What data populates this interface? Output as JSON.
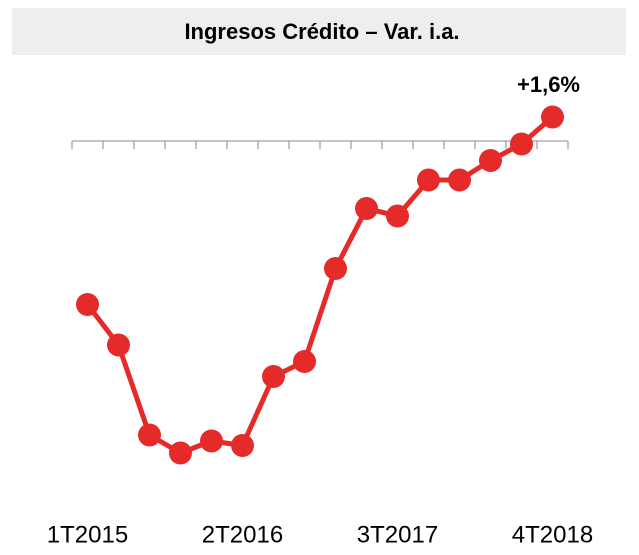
{
  "chart_data": {
    "type": "line",
    "title": "Ingresos Crédito – Var. i.a.",
    "categories": [
      "1T2015",
      null,
      null,
      null,
      null,
      "2T2016",
      null,
      null,
      null,
      null,
      "3T2017",
      null,
      null,
      null,
      null,
      "4T2018"
    ],
    "series": [
      {
        "name": null,
        "color": "#e52a2a",
        "values": [
          -10.9,
          -13.6,
          -19.6,
          -20.8,
          -20.0,
          -20.3,
          -15.7,
          -14.7,
          -8.5,
          -4.5,
          -5.0,
          -2.6,
          -2.6,
          -1.3,
          -0.2,
          1.6
        ],
        "value_labels": [
          null,
          null,
          null,
          null,
          null,
          null,
          null,
          null,
          null,
          null,
          null,
          null,
          null,
          null,
          null,
          "+1,6%"
        ]
      }
    ],
    "ylim": [
      -24,
      3.5
    ]
  }
}
